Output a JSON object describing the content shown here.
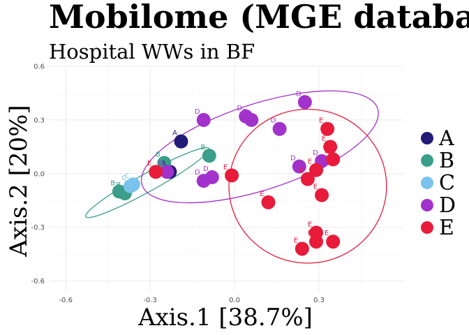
{
  "chart_data": {
    "type": "scatter",
    "title": "Mobilome (MGE database)",
    "subtitle": "Hospital WWs in BF",
    "xlabel": "Axis.1   [38.7%]",
    "ylabel": "Axis.2   [20%]",
    "xlim": [
      -0.66,
      0.6
    ],
    "ylim": [
      -0.66,
      0.6
    ],
    "x_ticks": [
      -0.6,
      -0.3,
      0.0,
      0.3
    ],
    "y_ticks": [
      -0.6,
      -0.3,
      0.0,
      0.3,
      0.6
    ],
    "x_tick_labels": [
      "-0.6",
      "-0.3",
      "0.0",
      "0.3"
    ],
    "y_tick_labels": [
      "-0.6",
      "-0.3",
      "0.0",
      "0.3",
      "0.6"
    ],
    "grid": true,
    "legend_position": "right",
    "series": [
      {
        "name": "A",
        "color": "#221B77",
        "points": [
          {
            "x": -0.19,
            "y": 0.18
          },
          {
            "x": -0.23,
            "y": 0.01
          }
        ]
      },
      {
        "name": "B",
        "color": "#3A9E8A",
        "points": [
          {
            "x": -0.25,
            "y": 0.06
          },
          {
            "x": -0.09,
            "y": 0.1
          },
          {
            "x": -0.41,
            "y": -0.1
          },
          {
            "x": -0.39,
            "y": -0.11
          }
        ]
      },
      {
        "name": "C",
        "color": "#7AC3EC",
        "points": [
          {
            "x": -0.37,
            "y": -0.07
          },
          {
            "x": -0.36,
            "y": -0.06
          }
        ]
      },
      {
        "name": "D",
        "color": "#A232CB",
        "points": [
          {
            "x": -0.11,
            "y": 0.3
          },
          {
            "x": 0.04,
            "y": 0.32
          },
          {
            "x": 0.06,
            "y": 0.3
          },
          {
            "x": 0.25,
            "y": 0.4
          },
          {
            "x": 0.16,
            "y": 0.25
          },
          {
            "x": 0.23,
            "y": 0.04
          },
          {
            "x": 0.31,
            "y": 0.07
          },
          {
            "x": -0.11,
            "y": -0.04
          },
          {
            "x": -0.08,
            "y": -0.02
          },
          {
            "x": -0.24,
            "y": 0.01
          }
        ]
      },
      {
        "name": "E",
        "color": "#E81B3A",
        "points": [
          {
            "x": 0.33,
            "y": 0.25
          },
          {
            "x": 0.34,
            "y": 0.15
          },
          {
            "x": 0.35,
            "y": 0.08
          },
          {
            "x": 0.29,
            "y": 0.02
          },
          {
            "x": 0.26,
            "y": -0.03
          },
          {
            "x": 0.31,
            "y": -0.12
          },
          {
            "x": 0.12,
            "y": -0.16
          },
          {
            "x": -0.01,
            "y": -0.01
          },
          {
            "x": -0.28,
            "y": 0.01
          },
          {
            "x": 0.29,
            "y": -0.33
          },
          {
            "x": 0.29,
            "y": -0.38
          },
          {
            "x": 0.35,
            "y": -0.38
          },
          {
            "x": 0.24,
            "y": -0.42
          }
        ]
      }
    ],
    "ellipses": [
      {
        "group": "B",
        "color": "#3A9E8A",
        "cx": -0.31,
        "cy": -0.05,
        "rx": 0.25,
        "ry": 0.05,
        "angle_deg": 29
      },
      {
        "group": "D",
        "color": "#A232CB",
        "cx": 0.09,
        "cy": 0.15,
        "rx": 0.44,
        "ry": 0.24,
        "angle_deg": 18
      },
      {
        "group": "E",
        "color": "#E81B3A",
        "cx": 0.26,
        "cy": -0.07,
        "rx": 0.28,
        "ry": 0.43,
        "angle_deg": 0
      }
    ]
  }
}
